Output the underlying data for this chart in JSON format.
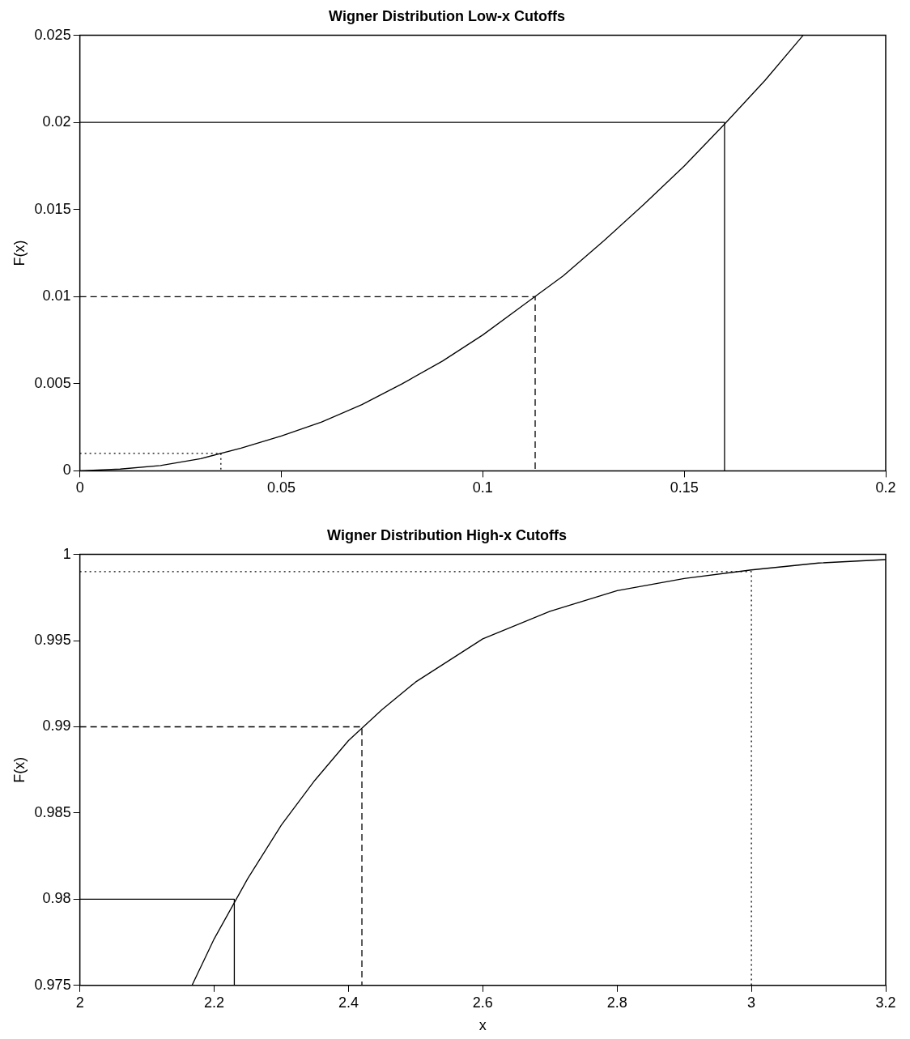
{
  "chart_data": [
    {
      "type": "line",
      "title": "Wigner Distribution Low-x Cutoffs",
      "ylabel": "F(x)",
      "xlim": [
        0,
        0.2
      ],
      "xticks": [
        0,
        0.05,
        0.1,
        0.15,
        0.2
      ],
      "ylim": [
        0,
        0.025
      ],
      "yticks": [
        0,
        0.005,
        0.01,
        0.015,
        0.02,
        0.025
      ],
      "grid": false,
      "legend": false,
      "marker": "none",
      "series": [
        {
          "color": "#000000",
          "line_style": "solid",
          "x": [
            0,
            0.01,
            0.02,
            0.03,
            0.04,
            0.05,
            0.06,
            0.07,
            0.08,
            0.09,
            0.1,
            0.11,
            0.12,
            0.13,
            0.14,
            0.15,
            0.16,
            0.17,
            0.1795
          ],
          "values": [
            0,
            0.0001,
            0.0003,
            0.0007,
            0.0013,
            0.002,
            0.0028,
            0.0038,
            0.005,
            0.0063,
            0.0078,
            0.0095,
            0.0112,
            0.0132,
            0.0153,
            0.0175,
            0.0199,
            0.0224,
            0.025
          ]
        },
        {
          "color": "#000000",
          "line_style": "solid",
          "x": [
            0,
            0.16,
            0.16
          ],
          "values": [
            0.02,
            0.02,
            0
          ]
        },
        {
          "color": "#000000",
          "line_style": "dashed",
          "x": [
            0,
            0.113,
            0.113
          ],
          "values": [
            0.01,
            0.01,
            0
          ]
        },
        {
          "color": "#000000",
          "line_style": "dotted",
          "x": [
            0,
            0.035,
            0.035
          ],
          "values": [
            0.001,
            0.001,
            0
          ]
        }
      ]
    },
    {
      "type": "line",
      "title": "Wigner Distribution High-x Cutoffs",
      "xlabel": "x",
      "ylabel": "F(x)",
      "xlim": [
        2,
        3.2
      ],
      "xticks": [
        2,
        2.2,
        2.4,
        2.6,
        2.8,
        3,
        3.2
      ],
      "ylim": [
        0.975,
        1
      ],
      "yticks": [
        0.975,
        0.98,
        0.985,
        0.99,
        0.995,
        1
      ],
      "grid": false,
      "legend": false,
      "marker": "none",
      "series": [
        {
          "color": "#000000",
          "line_style": "solid",
          "x": [
            2.167,
            2.2,
            2.25,
            2.3,
            2.35,
            2.4,
            2.45,
            2.5,
            2.6,
            2.7,
            2.8,
            2.9,
            3,
            3.1,
            3.2
          ],
          "values": [
            0.975,
            0.9777,
            0.9812,
            0.9843,
            0.9869,
            0.9892,
            0.991,
            0.9926,
            0.9951,
            0.9967,
            0.9979,
            0.9986,
            0.9991,
            0.9995,
            0.9997
          ]
        },
        {
          "color": "#000000",
          "line_style": "solid",
          "x": [
            2,
            2.23,
            2.23
          ],
          "values": [
            0.98,
            0.98,
            0.975
          ]
        },
        {
          "color": "#000000",
          "line_style": "dashed",
          "x": [
            2,
            2.42,
            2.42
          ],
          "values": [
            0.99,
            0.99,
            0.975
          ]
        },
        {
          "color": "#000000",
          "line_style": "dotted",
          "x": [
            2,
            3,
            3
          ],
          "values": [
            0.999,
            0.999,
            0.975
          ]
        }
      ]
    }
  ]
}
